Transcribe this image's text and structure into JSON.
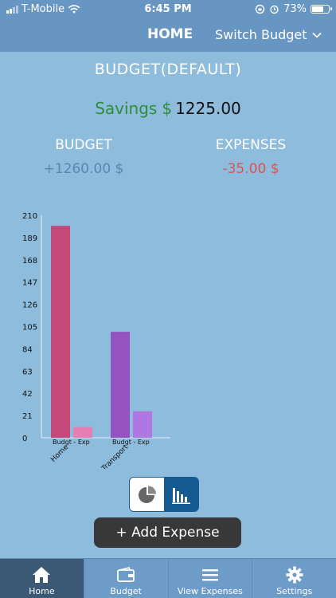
{
  "status": {
    "carrier": "T-Mobile",
    "time": "6:45 PM",
    "battery": "73%",
    "battery_level": 0.73
  },
  "nav": {
    "home": "HOME",
    "switch_budget": "Switch Budget"
  },
  "budget_title": "BUDGET(DEFAULT)",
  "savings": {
    "label": "Savings",
    "currency": "$",
    "amount": "1225.00"
  },
  "summary": {
    "budget_label": "BUDGET",
    "budget_value": "+1260.00 $",
    "expenses_label": "EXPENSES",
    "expenses_value": "-35.00 $"
  },
  "chart_data": {
    "type": "bar",
    "categories": [
      "Home",
      "Transport"
    ],
    "sub_labels": [
      "Budgt",
      "Exp"
    ],
    "sub_label_text": "Budgt  -  Exp",
    "series": [
      {
        "values": [
          200,
          100
        ],
        "colors": [
          "#c4497a",
          "#9453c0"
        ]
      },
      {
        "values": [
          10,
          25
        ],
        "colors": [
          "#e37fb2",
          "#b077e3"
        ]
      }
    ],
    "y_ticks": [
      0,
      21,
      42,
      63,
      84,
      105,
      126,
      147,
      168,
      189,
      210
    ],
    "ylim": [
      0,
      210
    ]
  },
  "buttons": {
    "add_expense": "+ Add Expense"
  },
  "tabs": [
    {
      "label": "Home",
      "icon": "home-icon"
    },
    {
      "label": "Budget",
      "icon": "wallet-icon"
    },
    {
      "label": "View Expenses",
      "icon": "list-icon"
    },
    {
      "label": "Settings",
      "icon": "gear-icon"
    }
  ],
  "colors": {
    "header": "#6796c3",
    "background": "#8dbcdd",
    "savings": "#2f8c3b",
    "expense": "#e05252"
  }
}
